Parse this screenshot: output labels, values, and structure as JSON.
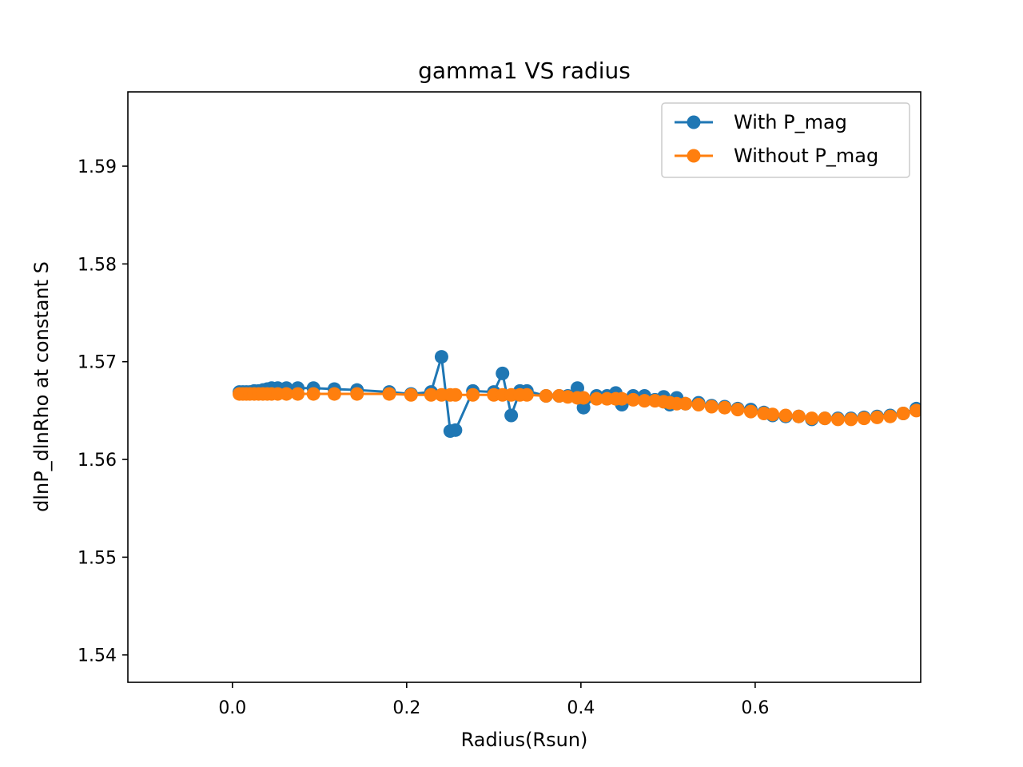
{
  "chart_data": {
    "type": "line",
    "title": "gamma1 VS radius",
    "xlabel": "Radius(Rsun)",
    "ylabel": "dlnP_dlnRho at constant S",
    "xlim": [
      -0.12,
      0.79
    ],
    "ylim": [
      1.5372,
      1.5976
    ],
    "xticks": [
      0.0,
      0.2,
      0.4,
      0.6
    ],
    "xtick_labels": [
      "0.0",
      "0.2",
      "0.4",
      "0.6"
    ],
    "yticks": [
      1.54,
      1.55,
      1.56,
      1.57,
      1.58,
      1.59
    ],
    "ytick_labels": [
      "1.54",
      "1.55",
      "1.56",
      "1.57",
      "1.58",
      "1.59"
    ],
    "grid": false,
    "legend_position": "top-right",
    "series": [
      {
        "name": "With P_mag",
        "color": "#1f77b4",
        "marker": "circle",
        "x": [
          0.008,
          0.012,
          0.016,
          0.02,
          0.025,
          0.03,
          0.035,
          0.04,
          0.045,
          0.052,
          0.062,
          0.075,
          0.093,
          0.117,
          0.143,
          0.18,
          0.205,
          0.228,
          0.24,
          0.25,
          0.256,
          0.276,
          0.3,
          0.31,
          0.32,
          0.33,
          0.338,
          0.36,
          0.375,
          0.385,
          0.396,
          0.403,
          0.418,
          0.43,
          0.44,
          0.447,
          0.46,
          0.473,
          0.485,
          0.495,
          0.502,
          0.51,
          0.52,
          0.535,
          0.55,
          0.565,
          0.58,
          0.595,
          0.61,
          0.62,
          0.635,
          0.65,
          0.665,
          0.68,
          0.695,
          0.71,
          0.725,
          0.74,
          0.755,
          0.77,
          0.785
        ],
        "y": [
          1.5669,
          1.5669,
          1.5669,
          1.5669,
          1.567,
          1.567,
          1.5671,
          1.5672,
          1.5673,
          1.5673,
          1.5673,
          1.5673,
          1.5673,
          1.5672,
          1.5671,
          1.5669,
          1.5667,
          1.5669,
          1.5705,
          1.5629,
          1.563,
          1.567,
          1.5669,
          1.5688,
          1.5645,
          1.567,
          1.567,
          1.5665,
          1.5665,
          1.5665,
          1.5673,
          1.5653,
          1.5665,
          1.5665,
          1.5668,
          1.5656,
          1.5665,
          1.5665,
          1.5661,
          1.5664,
          1.5656,
          1.5663,
          1.5657,
          1.5658,
          1.5655,
          1.5654,
          1.5652,
          1.5651,
          1.5648,
          1.5645,
          1.5644,
          1.5644,
          1.5641,
          1.5642,
          1.5642,
          1.5642,
          1.5643,
          1.5644,
          1.5645,
          1.5647,
          1.5652
        ]
      },
      {
        "name": "Without P_mag",
        "color": "#ff7f0e",
        "marker": "circle",
        "x": [
          0.008,
          0.012,
          0.016,
          0.02,
          0.025,
          0.03,
          0.035,
          0.04,
          0.045,
          0.052,
          0.062,
          0.075,
          0.093,
          0.117,
          0.143,
          0.18,
          0.205,
          0.228,
          0.24,
          0.25,
          0.256,
          0.276,
          0.3,
          0.31,
          0.32,
          0.33,
          0.338,
          0.36,
          0.375,
          0.385,
          0.396,
          0.403,
          0.418,
          0.43,
          0.44,
          0.447,
          0.46,
          0.473,
          0.485,
          0.495,
          0.502,
          0.51,
          0.52,
          0.535,
          0.55,
          0.565,
          0.58,
          0.595,
          0.61,
          0.62,
          0.635,
          0.65,
          0.665,
          0.68,
          0.695,
          0.71,
          0.725,
          0.74,
          0.755,
          0.77,
          0.785
        ],
        "y": [
          1.5667,
          1.5667,
          1.5667,
          1.5667,
          1.5667,
          1.5667,
          1.5667,
          1.5667,
          1.5667,
          1.5667,
          1.5667,
          1.5667,
          1.5667,
          1.5667,
          1.5667,
          1.5667,
          1.5666,
          1.5666,
          1.5666,
          1.5666,
          1.5666,
          1.5666,
          1.5666,
          1.5666,
          1.5666,
          1.5666,
          1.5666,
          1.5665,
          1.5665,
          1.5664,
          1.5663,
          1.5663,
          1.5662,
          1.5662,
          1.5662,
          1.5662,
          1.5661,
          1.566,
          1.566,
          1.5659,
          1.5658,
          1.5657,
          1.5657,
          1.5656,
          1.5654,
          1.5653,
          1.5651,
          1.5649,
          1.5647,
          1.5646,
          1.5645,
          1.5644,
          1.5642,
          1.5642,
          1.5641,
          1.5641,
          1.5642,
          1.5643,
          1.5644,
          1.5647,
          1.565
        ]
      }
    ]
  }
}
